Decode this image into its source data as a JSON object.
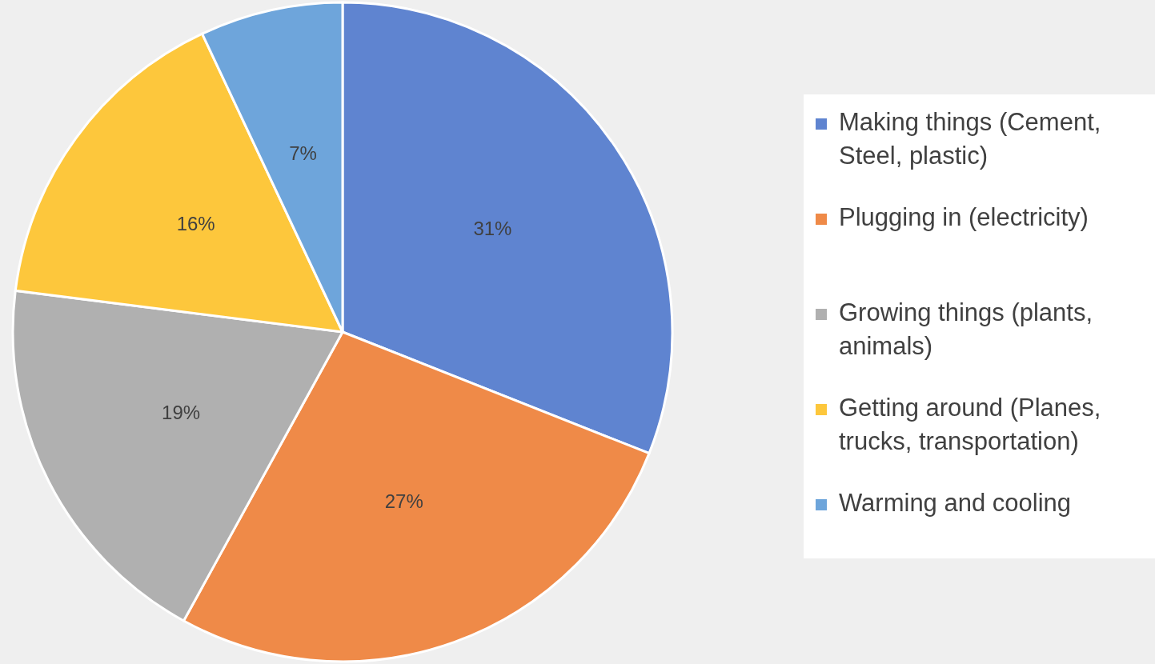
{
  "chart_data": {
    "type": "pie",
    "categories": [
      "Making things (Cement, Steel, plastic)",
      "Plugging in (electricity)",
      "Growing things (plants, animals)",
      "Getting around (Planes, trucks, transportation)",
      "Warming and cooling"
    ],
    "values": [
      31,
      27,
      19,
      16,
      7
    ],
    "value_labels": [
      "31%",
      "27%",
      "19%",
      "16%",
      "7%"
    ],
    "colors": [
      "#5f84d0",
      "#ef8a48",
      "#b0b0b0",
      "#fdc73c",
      "#6ea5db"
    ],
    "legend": "right"
  }
}
